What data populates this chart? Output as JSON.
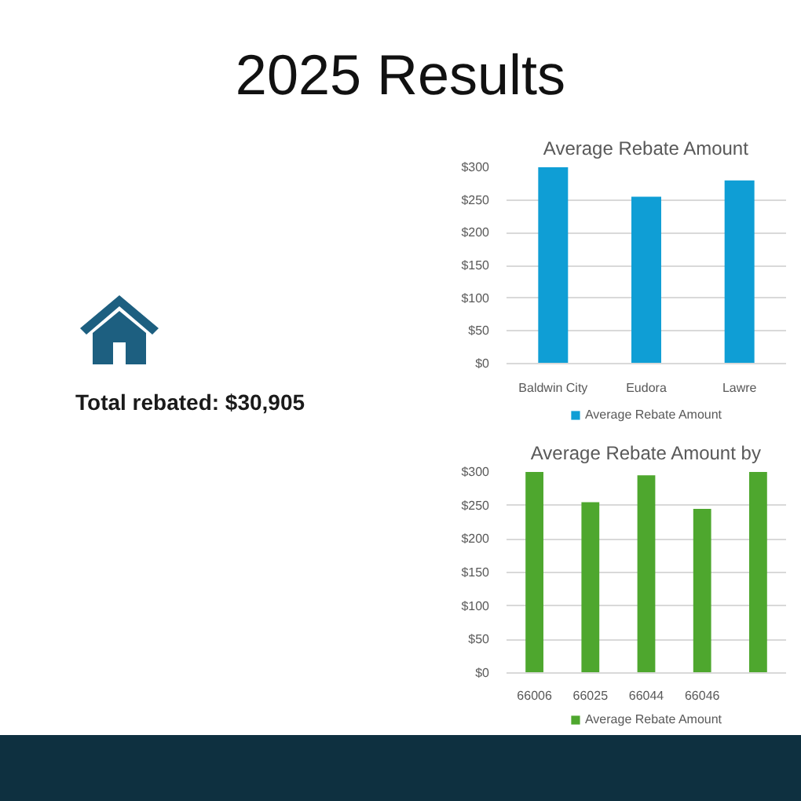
{
  "chart_data": [
    {
      "type": "other",
      "title": "2025 Results",
      "annotations": [
        "Total rebated: $30,905"
      ]
    },
    {
      "type": "bar",
      "title": "Average Rebate Amount",
      "categories": [
        "Baldwin City",
        "Eudora",
        "Lawre"
      ],
      "series": [
        {
          "name": "Average Rebate Amount",
          "color": "#0f9ed5",
          "values": [
            300,
            255,
            280
          ]
        }
      ],
      "ylim": [
        0,
        300
      ],
      "yticks": [
        {
          "value": 0,
          "label": "$0"
        },
        {
          "value": 50,
          "label": "$50"
        },
        {
          "value": 100,
          "label": "$100"
        },
        {
          "value": 150,
          "label": "$150"
        },
        {
          "value": 200,
          "label": "$200"
        },
        {
          "value": 250,
          "label": "$250"
        },
        {
          "value": 300,
          "label": "$300"
        }
      ],
      "grid": "y",
      "legend": "bottom"
    },
    {
      "type": "bar",
      "title": "Average Rebate Amount by",
      "categories": [
        "66006",
        "66025",
        "66044",
        "66046",
        null
      ],
      "series": [
        {
          "name": "Average Rebate Amount",
          "color": "#4ea72e",
          "values": [
            300,
            255,
            295,
            245,
            300
          ]
        }
      ],
      "ylim": [
        0,
        300
      ],
      "yticks": [
        {
          "value": 0,
          "label": "$0"
        },
        {
          "value": 50,
          "label": "$50"
        },
        {
          "value": 100,
          "label": "$100"
        },
        {
          "value": 150,
          "label": "$150"
        },
        {
          "value": 200,
          "label": "$200"
        },
        {
          "value": 250,
          "label": "$250"
        },
        {
          "value": 300,
          "label": "$300"
        }
      ],
      "grid": "y",
      "legend": "bottom"
    }
  ]
}
